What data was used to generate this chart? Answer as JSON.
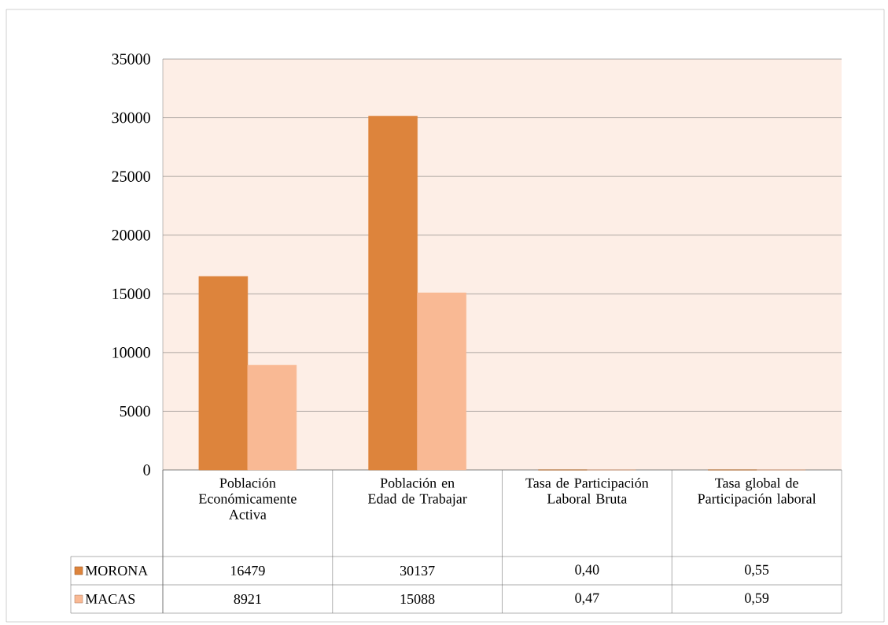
{
  "chart_data": {
    "type": "bar",
    "categories": [
      "Población Económicamente Activa",
      "Población en Edad de Trabajar",
      "Tasa de Participación Laboral Bruta",
      "Tasa global de Participación laboral"
    ],
    "series": [
      {
        "name": "MORONA",
        "color": "#dd843c",
        "values": [
          16479,
          30137,
          0.4,
          0.55
        ],
        "value_labels": [
          "16479",
          "30137",
          "0,40",
          "0,55"
        ]
      },
      {
        "name": "MACAS",
        "color": "#f9b994",
        "values": [
          8921,
          15088,
          0.47,
          0.59
        ],
        "value_labels": [
          "8921",
          "15088",
          "0,47",
          "0,59"
        ]
      }
    ],
    "ylim": [
      0,
      35000
    ],
    "yticks": [
      0,
      5000,
      10000,
      15000,
      20000,
      25000,
      30000,
      35000
    ],
    "grid": "y",
    "legend": "bottom"
  }
}
